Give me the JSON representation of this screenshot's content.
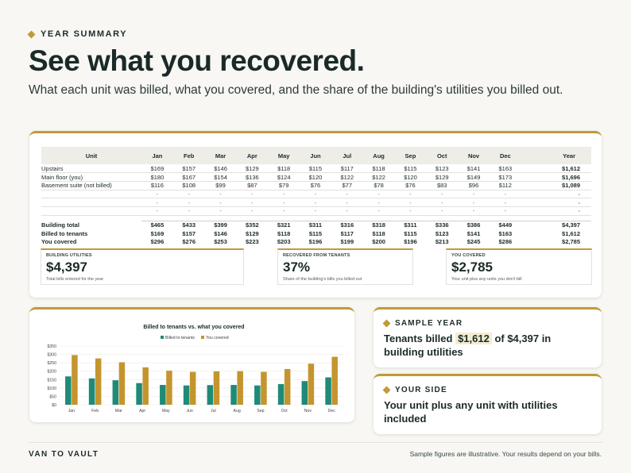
{
  "eyebrow": "YEAR SUMMARY",
  "headline": "See what you recovered.",
  "subline": "What each unit was billed, what you covered, and the share of the building's utilities you billed out.",
  "table": {
    "headers": [
      "Unit",
      "Jan",
      "Feb",
      "Mar",
      "Apr",
      "May",
      "Jun",
      "Jul",
      "Aug",
      "Sep",
      "Oct",
      "Nov",
      "Dec",
      "Year"
    ],
    "rows": [
      {
        "name": "Upstairs",
        "values": [
          "$169",
          "$157",
          "$146",
          "$129",
          "$118",
          "$115",
          "$117",
          "$118",
          "$115",
          "$123",
          "$141",
          "$163",
          "$1,612"
        ]
      },
      {
        "name": "Main floor (you)",
        "values": [
          "$180",
          "$167",
          "$154",
          "$136",
          "$124",
          "$120",
          "$122",
          "$122",
          "$120",
          "$129",
          "$149",
          "$173",
          "$1,696"
        ]
      },
      {
        "name": "Basement suite (not billed)",
        "values": [
          "$116",
          "$108",
          "$99",
          "$87",
          "$79",
          "$76",
          "$77",
          "$78",
          "$76",
          "$83",
          "$96",
          "$112",
          "$1,089"
        ]
      },
      {
        "name": "",
        "values": [
          "-",
          "-",
          "-",
          "-",
          "-",
          "-",
          "-",
          "-",
          "-",
          "-",
          "-",
          "-",
          "-"
        ]
      },
      {
        "name": "",
        "values": [
          "-",
          "-",
          "-",
          "-",
          "-",
          "-",
          "-",
          "-",
          "-",
          "-",
          "-",
          "-",
          "-"
        ]
      },
      {
        "name": "",
        "values": [
          "-",
          "-",
          "-",
          "-",
          "-",
          "-",
          "-",
          "-",
          "-",
          "-",
          "-",
          "-",
          "-"
        ]
      }
    ],
    "totals": [
      {
        "name": "Building total",
        "values": [
          "$465",
          "$433",
          "$399",
          "$352",
          "$321",
          "$311",
          "$316",
          "$318",
          "$311",
          "$336",
          "$386",
          "$449",
          "$4,397"
        ]
      },
      {
        "name": "Billed to tenants",
        "values": [
          "$169",
          "$157",
          "$146",
          "$129",
          "$118",
          "$115",
          "$117",
          "$118",
          "$115",
          "$123",
          "$141",
          "$163",
          "$1,612"
        ]
      },
      {
        "name": "You covered",
        "values": [
          "$296",
          "$276",
          "$253",
          "$223",
          "$203",
          "$196",
          "$199",
          "$200",
          "$196",
          "$213",
          "$245",
          "$286",
          "$2,785"
        ]
      }
    ]
  },
  "stats": [
    {
      "label": "BUILDING UTILITIES",
      "value": "$4,397",
      "note": "Total bills entered for the year"
    },
    {
      "label": "RECOVERED FROM TENANTS",
      "value": "37%",
      "note": "Share of the building's bills you billed out"
    },
    {
      "label": "YOU COVERED",
      "value": "$2,785",
      "note": "Your unit plus any units you don't bill"
    }
  ],
  "chart_data": {
    "type": "bar",
    "title": "Billed to tenants vs. what you covered",
    "categories": [
      "Jan",
      "Feb",
      "Mar",
      "Apr",
      "May",
      "Jun",
      "Jul",
      "Aug",
      "Sep",
      "Oct",
      "Nov",
      "Dec"
    ],
    "series": [
      {
        "name": "Billed to tenants",
        "color": "#1f8a78",
        "values": [
          169,
          157,
          146,
          129,
          118,
          115,
          117,
          118,
          115,
          123,
          141,
          163
        ]
      },
      {
        "name": "You covered",
        "color": "#c4952e",
        "values": [
          296,
          276,
          253,
          223,
          203,
          196,
          199,
          200,
          196,
          213,
          245,
          286
        ]
      }
    ],
    "yticks": [
      "$0",
      "$50",
      "$100",
      "$150",
      "$200",
      "$250",
      "$300",
      "$350"
    ],
    "ylim": [
      0,
      350
    ],
    "legend": "top-center",
    "grid": true
  },
  "sample_year": {
    "tag": "SAMPLE YEAR",
    "pre": "Tenants billed ",
    "billed": "$1,612",
    "mid": " of $4,397 in building utilities"
  },
  "your_side": {
    "tag": "YOUR SIDE",
    "body": "Your unit plus any unit with utilities included"
  },
  "footer": {
    "brand": "VAN TO VAULT",
    "disclaimer": "Sample figures are illustrative. Your results depend on your bills."
  }
}
